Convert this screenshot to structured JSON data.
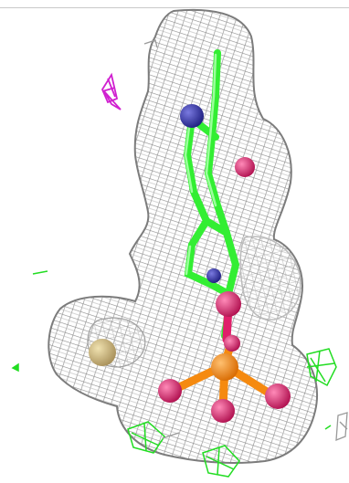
{
  "scene": {
    "subject": "density-mesh-molecule",
    "colors": {
      "mesh": "#8f8f8f",
      "background": "#ffffff",
      "carbon": "#33ee33",
      "nitrogen": "#2a2aa0",
      "oxygen": "#e0206a",
      "phosphorus": "#f58a10",
      "sulfur": "#c9b060",
      "negative_density": "#22dd22",
      "magenta_density": "#d020d0"
    }
  }
}
